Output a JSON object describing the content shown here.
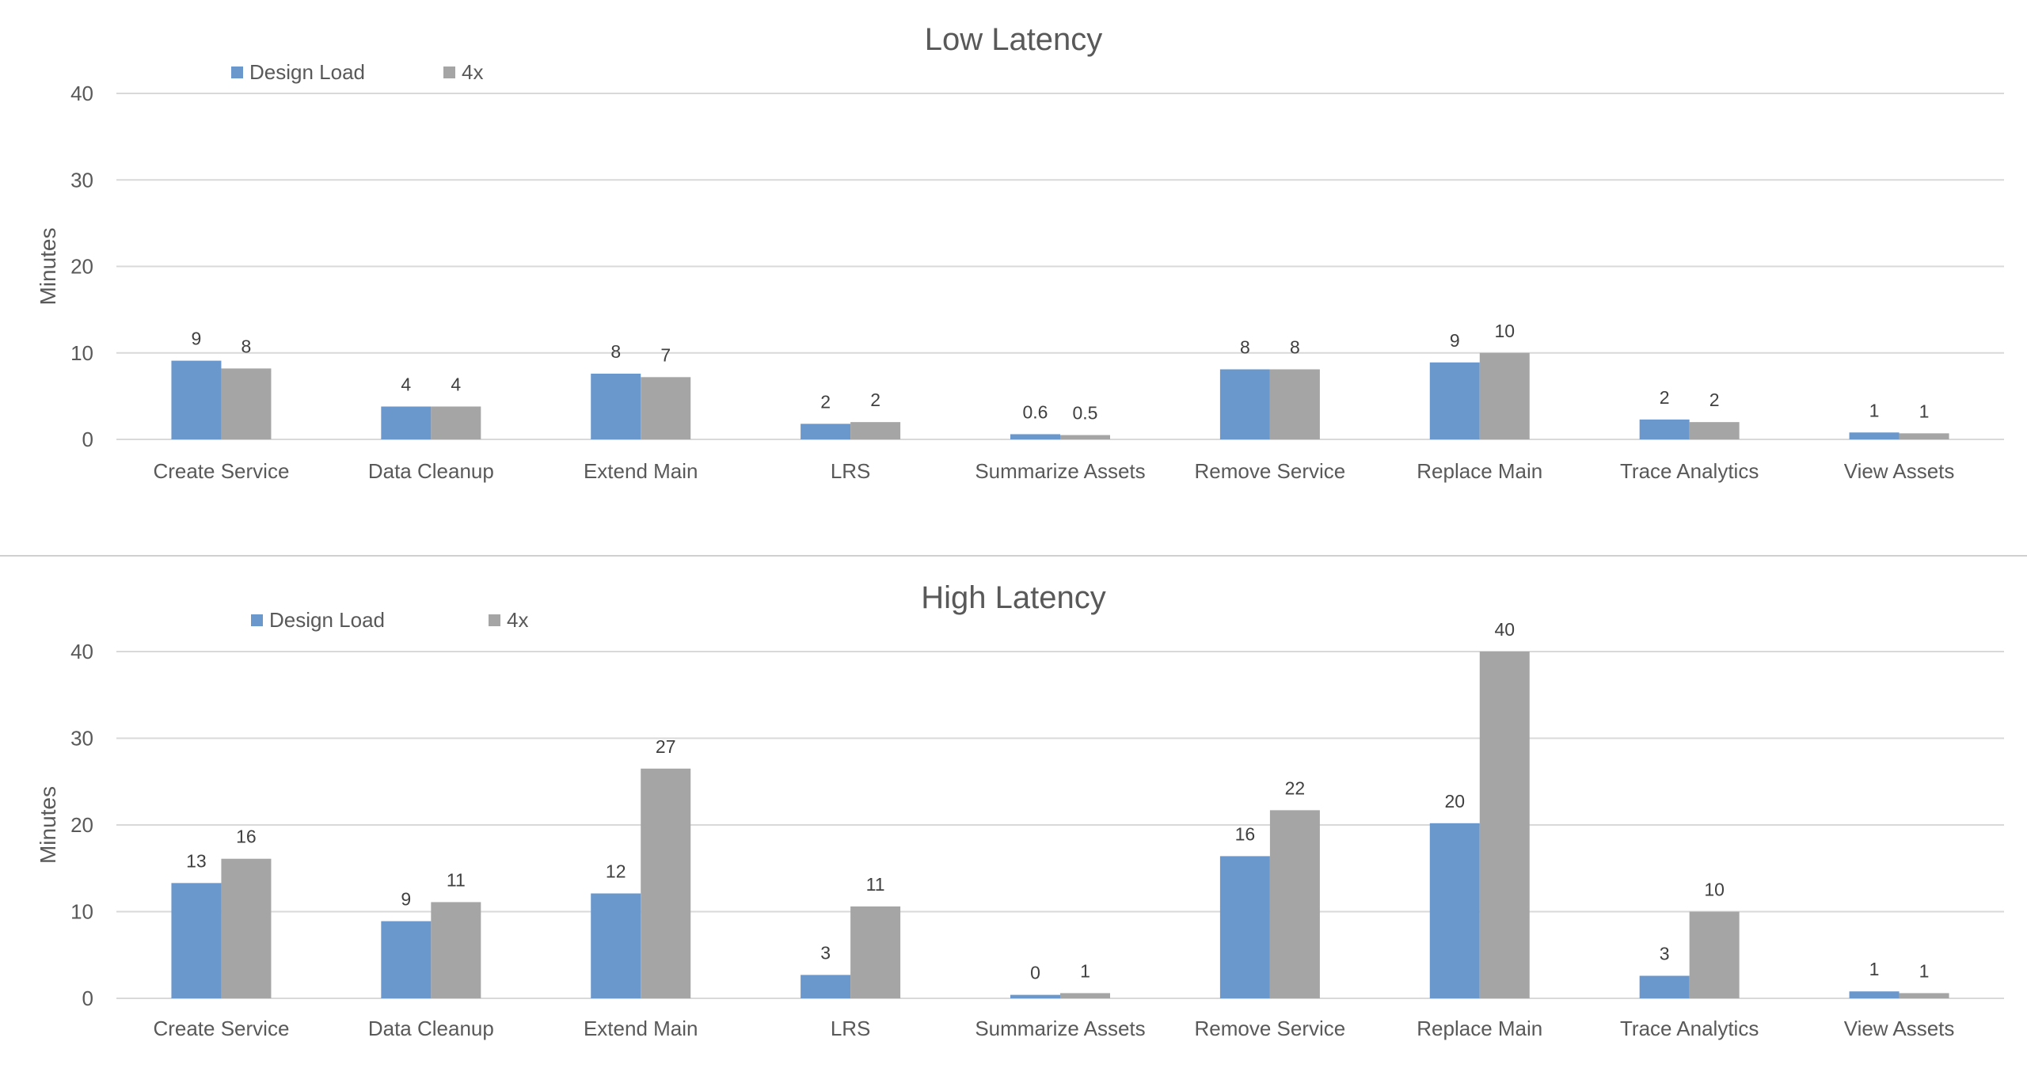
{
  "chart_data": [
    {
      "type": "bar",
      "title": "Low Latency",
      "ylabel": "Minutes",
      "xlabel": "",
      "ylim": [
        0,
        40
      ],
      "yticks": [
        "0",
        "10",
        "20",
        "30",
        "40"
      ],
      "grid": true,
      "legend_placement": "top-left",
      "categories": [
        "Create Service",
        "Data Cleanup",
        "Extend Main",
        "LRS",
        "Summarize Assets",
        "Remove Service",
        "Replace Main",
        "Trace Analytics",
        "View Assets"
      ],
      "series": [
        {
          "name": "Design Load",
          "color": "#6a98cc",
          "values": [
            9.1,
            3.8,
            7.6,
            1.8,
            0.6,
            8.1,
            8.9,
            2.3,
            0.8
          ],
          "labels": [
            "9",
            "4",
            "8",
            "2",
            "0.6",
            "8",
            "9",
            "2",
            "1"
          ]
        },
        {
          "name": "4x",
          "color": "#a5a5a5",
          "values": [
            8.2,
            3.8,
            7.2,
            2.0,
            0.5,
            8.1,
            10.0,
            2.0,
            0.7
          ],
          "labels": [
            "8",
            "4",
            "7",
            "2",
            "0.5",
            "8",
            "10",
            "2",
            "1"
          ]
        }
      ]
    },
    {
      "type": "bar",
      "title": "High Latency",
      "ylabel": "Minutes",
      "xlabel": "",
      "ylim": [
        0,
        40
      ],
      "yticks": [
        "0",
        "10",
        "20",
        "30",
        "40"
      ],
      "grid": true,
      "legend_placement": "top-left",
      "categories": [
        "Create Service",
        "Data Cleanup",
        "Extend Main",
        "LRS",
        "Summarize Assets",
        "Remove Service",
        "Replace Main",
        "Trace Analytics",
        "View Assets"
      ],
      "series": [
        {
          "name": "Design Load",
          "color": "#6a98cc",
          "values": [
            13.3,
            8.9,
            12.1,
            2.7,
            0.4,
            16.4,
            20.2,
            2.6,
            0.8
          ],
          "labels": [
            "13",
            "9",
            "12",
            "3",
            "0",
            "16",
            "20",
            "3",
            "1"
          ]
        },
        {
          "name": "4x",
          "color": "#a5a5a5",
          "values": [
            16.1,
            11.1,
            26.5,
            10.6,
            0.6,
            21.7,
            40.0,
            10.0,
            0.6
          ],
          "labels": [
            "16",
            "11",
            "27",
            "11",
            "1",
            "22",
            "40",
            "10",
            "1"
          ]
        }
      ]
    }
  ]
}
